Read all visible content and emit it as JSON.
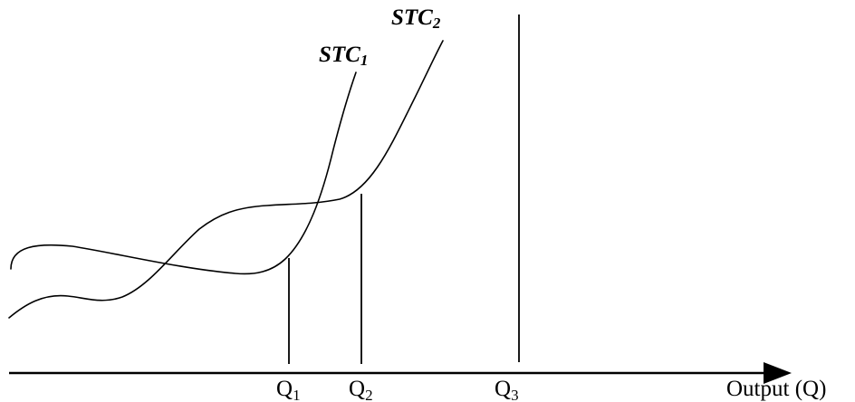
{
  "curves": {
    "stc1": {
      "name": "STC",
      "subscript": "1"
    },
    "stc2": {
      "name": "STC",
      "subscript": "2"
    }
  },
  "ticks": {
    "q1": {
      "name": "Q",
      "subscript": "1"
    },
    "q2": {
      "name": "Q",
      "subscript": "2"
    },
    "q3": {
      "name": "Q",
      "subscript": "3"
    }
  },
  "x_axis": {
    "label": "Output (Q)"
  }
}
